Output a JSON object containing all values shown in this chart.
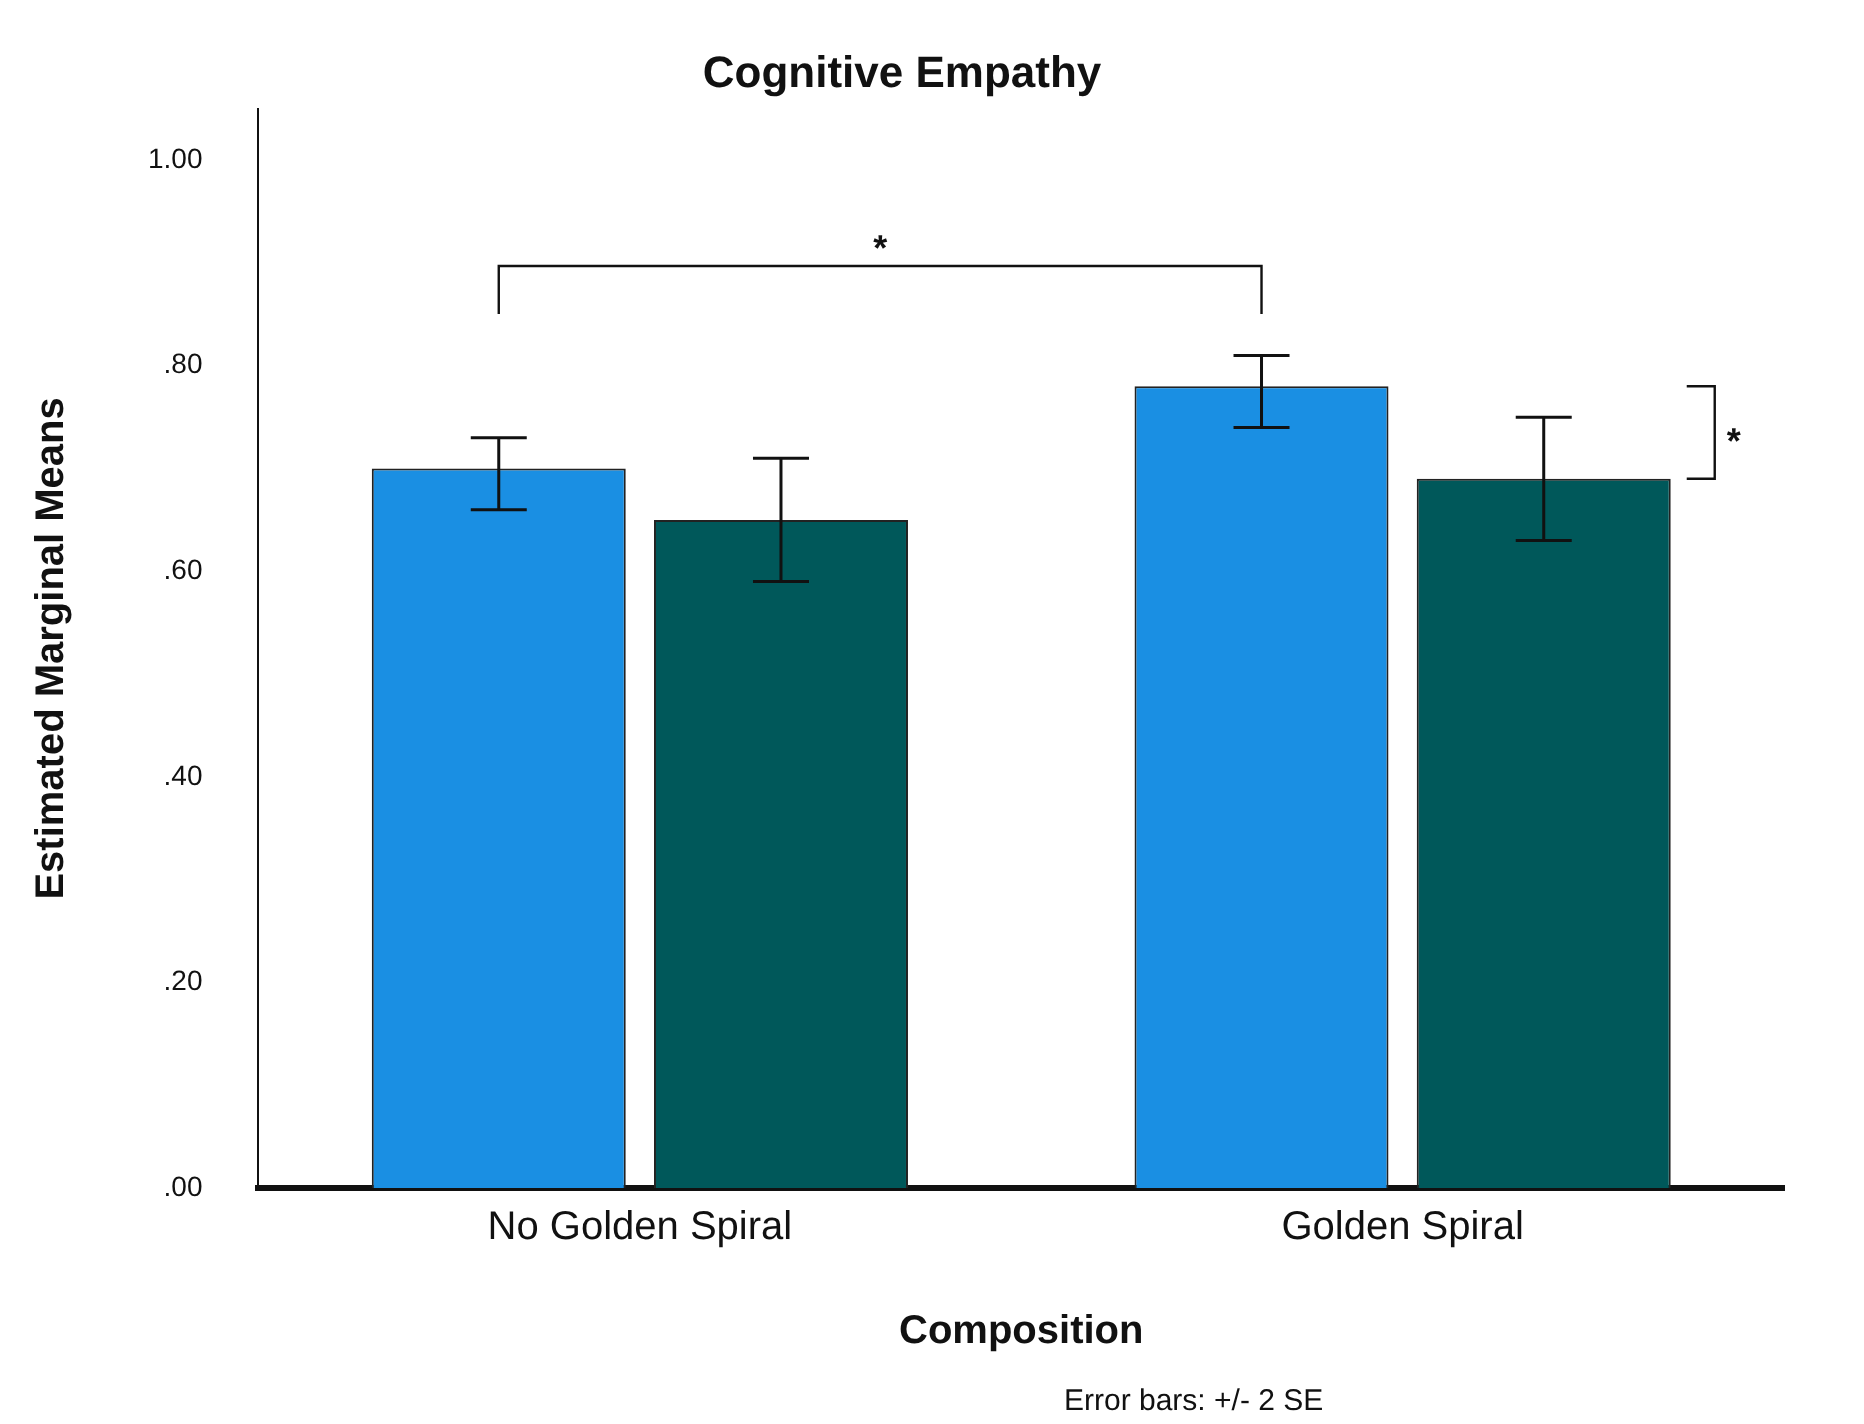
{
  "chart_data": {
    "type": "bar",
    "title": "Cognitive Empathy",
    "xlabel": "Composition",
    "ylabel": "Estimated Marginal Means",
    "categories": [
      "No Golden Spiral",
      "Golden Spiral"
    ],
    "series": [
      {
        "color": "#1a8fe3",
        "values": [
          0.7,
          0.78
        ],
        "errors": [
          [
            0.66,
            0.73
          ],
          [
            0.74,
            0.81
          ]
        ]
      },
      {
        "color": "#00585a",
        "values": [
          0.65,
          0.69
        ],
        "errors": [
          [
            0.59,
            0.71
          ],
          [
            0.63,
            0.75
          ]
        ]
      }
    ],
    "ylim": [
      0,
      1.05
    ],
    "yticks": [
      {
        "value": 0,
        "label": ".00"
      },
      {
        "value": 0.2,
        "label": ".20"
      },
      {
        "value": 0.4,
        "label": ".40"
      },
      {
        "value": 0.6,
        "label": ".60"
      },
      {
        "value": 0.8,
        "label": ".80"
      },
      {
        "value": 1,
        "label": "1.00"
      }
    ],
    "grid": false,
    "legend": false,
    "annotations": [
      "*",
      "*",
      "Error bars: +/- 2 SE"
    ]
  }
}
